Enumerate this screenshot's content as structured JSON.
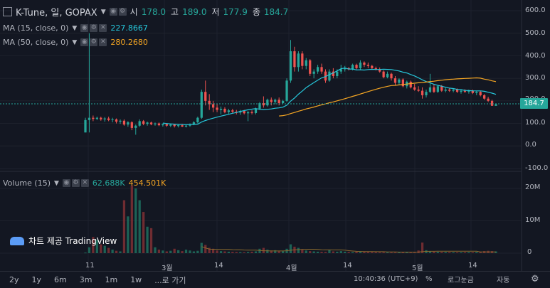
{
  "header": {
    "symbol": "K-Tune, 일, GOPAX",
    "ohlc": [
      {
        "label": "시",
        "value": "178.0"
      },
      {
        "label": "고",
        "value": "189.0"
      },
      {
        "label": "저",
        "value": "177.9"
      },
      {
        "label": "종",
        "value": "184.7"
      }
    ]
  },
  "ma15": {
    "label": "MA (15, close, 0)",
    "value": "227.8667",
    "color": "#26c6da"
  },
  "ma50": {
    "label": "MA (50, close, 0)",
    "value": "280.2680",
    "color": "#f5a623"
  },
  "volume": {
    "label": "Volume (15)",
    "value1": "62.688K",
    "value2": "454.501K"
  },
  "last_price": "184.7",
  "price_axis": [
    "600.0",
    "500.0",
    "400.0",
    "300.0",
    "200.0",
    "100.0",
    "0.0",
    "-100.0"
  ],
  "volume_axis": [
    "20M",
    "10M",
    "0"
  ],
  "time_axis": [
    "11",
    "3월",
    "14",
    "4월",
    "14",
    "5월",
    "14"
  ],
  "watermark": "차트 제공 TradingView",
  "bottom_bar": {
    "ranges": [
      "2y",
      "1y",
      "6m",
      "3m",
      "1m",
      "1w",
      "...로 가기"
    ],
    "clock": "10:40:36 (UTC+9)",
    "percent": "%",
    "log": "로그눈금",
    "auto": "자동"
  },
  "colors": {
    "up": "#26a69a",
    "down": "#ef5350",
    "background": "#131722",
    "grid": "#1e222d"
  },
  "chart_data": {
    "type": "candlestick",
    "price_range": [
      -100,
      600
    ],
    "volume_range": [
      0,
      22000000
    ],
    "ohlc": [
      [
        60,
        125,
        60,
        115
      ],
      [
        115,
        500,
        60,
        125
      ],
      [
        125,
        135,
        110,
        120
      ],
      [
        120,
        130,
        115,
        125
      ],
      [
        125,
        130,
        112,
        118
      ],
      [
        118,
        128,
        108,
        122
      ],
      [
        122,
        130,
        110,
        115
      ],
      [
        115,
        125,
        105,
        118
      ],
      [
        118,
        122,
        100,
        108
      ],
      [
        108,
        118,
        98,
        112
      ],
      [
        112,
        118,
        90,
        95
      ],
      [
        95,
        110,
        85,
        105
      ],
      [
        105,
        110,
        70,
        80
      ],
      [
        80,
        95,
        50,
        90
      ],
      [
        90,
        118,
        85,
        110
      ],
      [
        110,
        115,
        92,
        98
      ],
      [
        98,
        108,
        90,
        104
      ],
      [
        104,
        108,
        92,
        96
      ],
      [
        96,
        104,
        90,
        100
      ],
      [
        100,
        104,
        88,
        92
      ],
      [
        92,
        100,
        86,
        97
      ],
      [
        97,
        100,
        85,
        90
      ],
      [
        90,
        98,
        84,
        95
      ],
      [
        95,
        98,
        82,
        88
      ],
      [
        88,
        96,
        82,
        92
      ],
      [
        92,
        98,
        84,
        86
      ],
      [
        86,
        95,
        82,
        90
      ],
      [
        90,
        100,
        85,
        95
      ],
      [
        95,
        110,
        92,
        105
      ],
      [
        105,
        130,
        100,
        125
      ],
      [
        125,
        250,
        120,
        240
      ],
      [
        240,
        290,
        180,
        200
      ],
      [
        200,
        230,
        160,
        185
      ],
      [
        185,
        200,
        150,
        170
      ],
      [
        170,
        185,
        150,
        160
      ],
      [
        160,
        175,
        140,
        165
      ],
      [
        165,
        172,
        145,
        150
      ],
      [
        150,
        165,
        140,
        158
      ],
      [
        158,
        165,
        145,
        152
      ],
      [
        152,
        160,
        140,
        148
      ],
      [
        148,
        160,
        138,
        155
      ],
      [
        155,
        160,
        140,
        145
      ],
      [
        145,
        155,
        110,
        150
      ],
      [
        150,
        158,
        140,
        146
      ],
      [
        146,
        170,
        140,
        165
      ],
      [
        165,
        195,
        160,
        190
      ],
      [
        190,
        220,
        170,
        180
      ],
      [
        180,
        210,
        175,
        205
      ],
      [
        205,
        215,
        180,
        195
      ],
      [
        195,
        210,
        185,
        205
      ],
      [
        205,
        215,
        180,
        190
      ],
      [
        190,
        205,
        185,
        200
      ],
      [
        200,
        300,
        195,
        290
      ],
      [
        290,
        470,
        280,
        420
      ],
      [
        420,
        440,
        330,
        350
      ],
      [
        350,
        420,
        330,
        410
      ],
      [
        410,
        420,
        340,
        355
      ],
      [
        355,
        390,
        340,
        380
      ],
      [
        380,
        385,
        310,
        320
      ],
      [
        320,
        340,
        300,
        330
      ],
      [
        330,
        360,
        320,
        350
      ],
      [
        350,
        365,
        320,
        330
      ],
      [
        330,
        340,
        280,
        290
      ],
      [
        290,
        340,
        285,
        330
      ],
      [
        330,
        345,
        300,
        310
      ],
      [
        310,
        340,
        300,
        330
      ],
      [
        330,
        360,
        320,
        340
      ],
      [
        340,
        355,
        330,
        345
      ],
      [
        345,
        350,
        335,
        340
      ],
      [
        340,
        365,
        335,
        360
      ],
      [
        360,
        365,
        340,
        345
      ],
      [
        345,
        380,
        340,
        370
      ],
      [
        370,
        375,
        350,
        360
      ],
      [
        360,
        370,
        345,
        355
      ],
      [
        355,
        360,
        340,
        345
      ],
      [
        345,
        352,
        335,
        340
      ],
      [
        340,
        348,
        325,
        330
      ],
      [
        330,
        335,
        300,
        305
      ],
      [
        305,
        330,
        300,
        320
      ],
      [
        320,
        325,
        290,
        300
      ],
      [
        300,
        310,
        270,
        280
      ],
      [
        280,
        300,
        270,
        295
      ],
      [
        295,
        300,
        260,
        265
      ],
      [
        265,
        290,
        255,
        285
      ],
      [
        285,
        290,
        255,
        260
      ],
      [
        260,
        275,
        245,
        250
      ],
      [
        250,
        265,
        240,
        245
      ],
      [
        245,
        260,
        210,
        225
      ],
      [
        225,
        250,
        215,
        240
      ],
      [
        240,
        320,
        235,
        260
      ],
      [
        260,
        275,
        235,
        240
      ],
      [
        240,
        270,
        235,
        265
      ],
      [
        265,
        270,
        240,
        245
      ],
      [
        245,
        258,
        238,
        250
      ],
      [
        250,
        258,
        240,
        245
      ],
      [
        245,
        255,
        238,
        250
      ],
      [
        250,
        255,
        235,
        240
      ],
      [
        240,
        252,
        232,
        245
      ],
      [
        245,
        252,
        235,
        240
      ],
      [
        240,
        250,
        232,
        246
      ],
      [
        246,
        250,
        230,
        235
      ],
      [
        235,
        245,
        225,
        240
      ],
      [
        240,
        245,
        220,
        225
      ],
      [
        225,
        230,
        205,
        210
      ],
      [
        210,
        218,
        195,
        200
      ],
      [
        200,
        205,
        180,
        178
      ],
      [
        178,
        189,
        177.9,
        184.7
      ]
    ],
    "volume": [
      200000,
      2000000,
      5500000,
      4500000,
      3000000,
      2500000,
      1800000,
      1200000,
      800000,
      600000,
      18000000,
      12500000,
      23000000,
      22000000,
      18000000,
      14000000,
      9000000,
      8500000,
      2000000,
      1200000,
      900000,
      600000,
      800000,
      1500000,
      1000000,
      700000,
      1200000,
      900000,
      600000,
      800000,
      3500000,
      2800000,
      1800000,
      1500000,
      900000,
      700000,
      600000,
      500000,
      450000,
      400000,
      350000,
      300000,
      400000,
      500000,
      600000,
      1500000,
      1800000,
      1200000,
      900000,
      1000000,
      800000,
      700000,
      1500000,
      3000000,
      2200000,
      1800000,
      1200000,
      900000,
      700000,
      600000,
      500000,
      450000,
      400000,
      1100000,
      600000,
      500000,
      700000,
      500000,
      400000,
      350000,
      500000,
      600000,
      450000,
      400000,
      380000,
      350000,
      300000,
      320000,
      280000,
      260000,
      240000,
      250000,
      300000,
      280000,
      260000,
      320000,
      900000,
      3600000,
      1000000,
      700000,
      500000,
      450000,
      400000,
      380000,
      350000,
      300000,
      280000,
      300000,
      320000,
      350000,
      300000,
      400000,
      500000,
      700000,
      800000,
      700000,
      600000
    ],
    "ma15_start": 20,
    "ma50_start": 50
  }
}
